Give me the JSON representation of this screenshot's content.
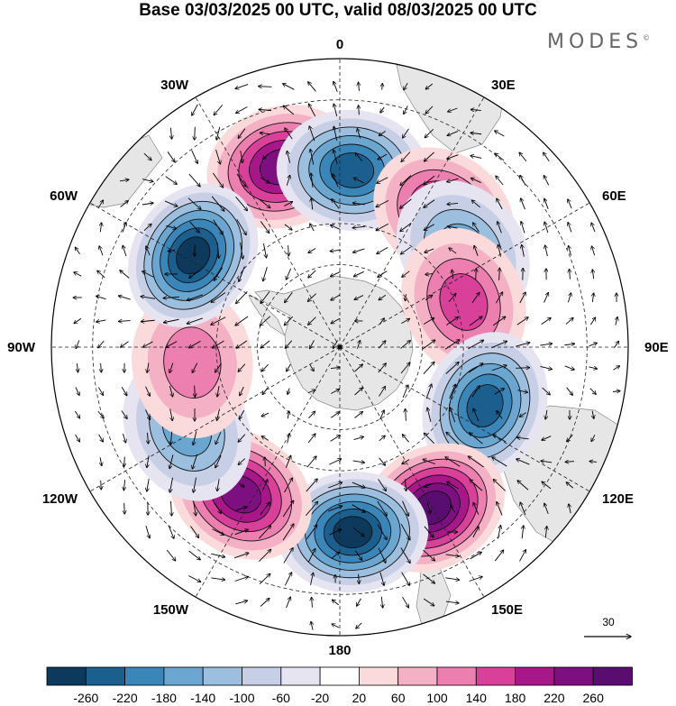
{
  "title": "Base 03/03/2025 00 UTC, valid 08/03/2025 00 UTC",
  "brand": "MODES",
  "brand_mark": "©",
  "longitude_labels": [
    {
      "text": "0",
      "lon": 0
    },
    {
      "text": "30E",
      "lon": 30
    },
    {
      "text": "60E",
      "lon": 60
    },
    {
      "text": "90E",
      "lon": 90
    },
    {
      "text": "120E",
      "lon": 120
    },
    {
      "text": "150E",
      "lon": 150
    },
    {
      "text": "180",
      "lon": 180
    },
    {
      "text": "150W",
      "lon": -150
    },
    {
      "text": "120W",
      "lon": -120
    },
    {
      "text": "90W",
      "lon": -90
    },
    {
      "text": "60W",
      "lon": -60
    },
    {
      "text": "30W",
      "lon": -30
    }
  ],
  "reference_vector_label": "30",
  "colorbar": {
    "levels": [
      "-260",
      "-220",
      "-180",
      "-140",
      "-100",
      "-60",
      "-20",
      "20",
      "60",
      "100",
      "140",
      "180",
      "220",
      "260"
    ],
    "colors": [
      "#0d3a5c",
      "#1b5f8f",
      "#3a86b8",
      "#6aa6cf",
      "#9dbfdf",
      "#c7cfe6",
      "#e6e4f1",
      "#ffffff",
      "#fbdadc",
      "#f4b0c4",
      "#ec7fb0",
      "#d8409a",
      "#a8178a",
      "#7d0f80",
      "#5a0d70"
    ]
  },
  "anomalies": [
    {
      "lon": -18,
      "lat": -44,
      "value": 250
    },
    {
      "lon": 4,
      "lat": -47,
      "value": -240
    },
    {
      "lon": 38,
      "lat": -49,
      "value": 200
    },
    {
      "lon": 52,
      "lat": -52,
      "value": -160
    },
    {
      "lon": 70,
      "lat": -58,
      "value": 170
    },
    {
      "lon": 112,
      "lat": -52,
      "value": -250
    },
    {
      "lon": 150,
      "lat": -45,
      "value": 260
    },
    {
      "lon": 176,
      "lat": -45,
      "value": -260
    },
    {
      "lon": -146,
      "lat": -47,
      "value": 240
    },
    {
      "lon": -118,
      "lat": -48,
      "value": -140
    },
    {
      "lon": -96,
      "lat": -54,
      "value": 130
    },
    {
      "lon": -58,
      "lat": -48,
      "value": -260
    }
  ]
}
